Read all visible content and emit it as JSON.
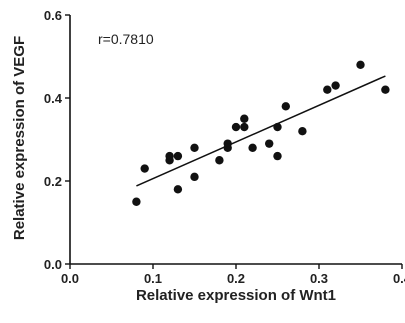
{
  "chart_data": {
    "type": "scatter",
    "xlabel": "Relative expression of Wnt1",
    "ylabel": "Relative expression of VEGF",
    "annotation": "r=0.7810",
    "xlim": [
      0.0,
      0.4
    ],
    "ylim": [
      0.0,
      0.6
    ],
    "x_ticks": [
      "0.0",
      "0.1",
      "0.2",
      "0.3",
      "0.4"
    ],
    "y_ticks": [
      "0.0",
      "0.2",
      "0.4",
      "0.6"
    ],
    "grid": false,
    "points": [
      {
        "x": 0.08,
        "y": 0.15
      },
      {
        "x": 0.09,
        "y": 0.23
      },
      {
        "x": 0.12,
        "y": 0.25
      },
      {
        "x": 0.12,
        "y": 0.26
      },
      {
        "x": 0.13,
        "y": 0.26
      },
      {
        "x": 0.13,
        "y": 0.18
      },
      {
        "x": 0.15,
        "y": 0.28
      },
      {
        "x": 0.15,
        "y": 0.21
      },
      {
        "x": 0.18,
        "y": 0.25
      },
      {
        "x": 0.19,
        "y": 0.29
      },
      {
        "x": 0.19,
        "y": 0.28
      },
      {
        "x": 0.2,
        "y": 0.33
      },
      {
        "x": 0.21,
        "y": 0.33
      },
      {
        "x": 0.21,
        "y": 0.35
      },
      {
        "x": 0.22,
        "y": 0.28
      },
      {
        "x": 0.24,
        "y": 0.29
      },
      {
        "x": 0.25,
        "y": 0.26
      },
      {
        "x": 0.25,
        "y": 0.33
      },
      {
        "x": 0.26,
        "y": 0.38
      },
      {
        "x": 0.28,
        "y": 0.32
      },
      {
        "x": 0.31,
        "y": 0.42
      },
      {
        "x": 0.32,
        "y": 0.43
      },
      {
        "x": 0.35,
        "y": 0.48
      },
      {
        "x": 0.38,
        "y": 0.42
      }
    ],
    "trendline": {
      "x": [
        0.08,
        0.38
      ],
      "y": [
        0.188,
        0.453
      ]
    },
    "colors": {
      "points": "#111111",
      "line": "#111111",
      "axes": "#111111"
    }
  }
}
